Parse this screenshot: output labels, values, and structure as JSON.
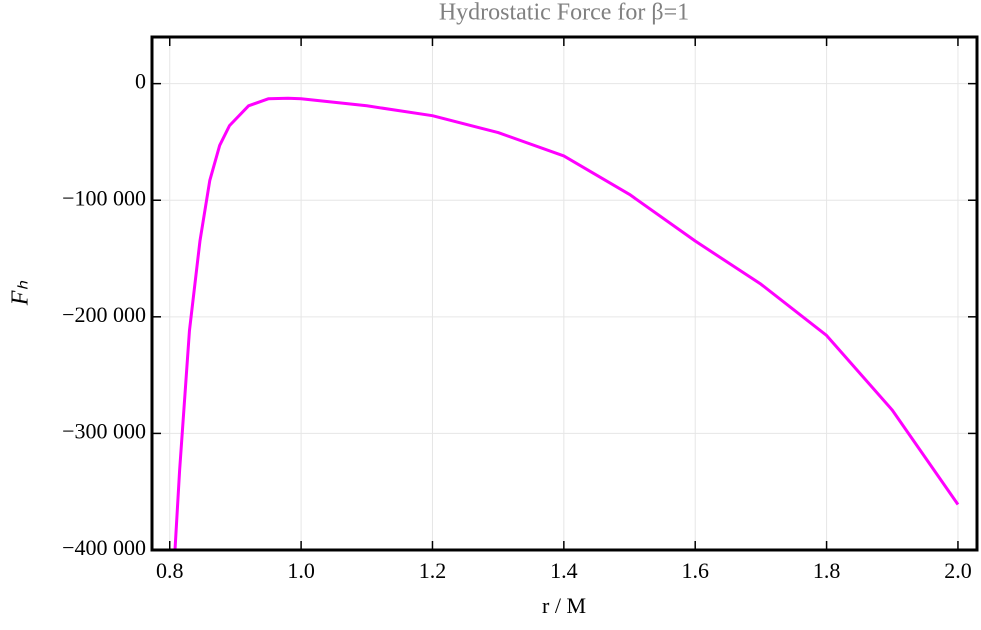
{
  "chart_data": {
    "type": "line",
    "title": "Hydrostatic Force for β=1",
    "x_label": "r / M",
    "y_label": "Fₕ",
    "x": [
      0.808,
      0.815,
      0.83,
      0.846,
      0.861,
      0.876,
      0.891,
      0.92,
      0.95,
      0.98,
      1.0,
      1.1,
      1.2,
      1.3,
      1.4,
      1.5,
      1.6,
      1.7,
      1.8,
      1.9,
      2.0
    ],
    "series": [
      {
        "name": "F_h",
        "color": "#ff00ff",
        "values": [
          -400000,
          -332000,
          -212000,
          -135000,
          -83000,
          -53000,
          -36000,
          -19000,
          -13000,
          -12500,
          -13000,
          -19000,
          -27500,
          -42000,
          -62000,
          -95000,
          -135000,
          -172000,
          -216000,
          -280000,
          -361000
        ]
      }
    ],
    "xlim": [
      0.773,
      2.029
    ],
    "ylim": [
      -400000,
      40000
    ],
    "xticks": [
      0.8,
      {
        "value": 1.0,
        "label": "1.0"
      },
      1.2,
      1.4,
      1.6,
      1.8,
      {
        "value": 2.0,
        "label": "2.0"
      }
    ],
    "yticks": [
      {
        "value": -400000,
        "label": "−400 000"
      },
      {
        "value": -300000,
        "label": "−300 000"
      },
      {
        "value": -200000,
        "label": "−200 000"
      },
      {
        "value": -100000,
        "label": "−100 000"
      },
      0
    ],
    "grid": true
  }
}
